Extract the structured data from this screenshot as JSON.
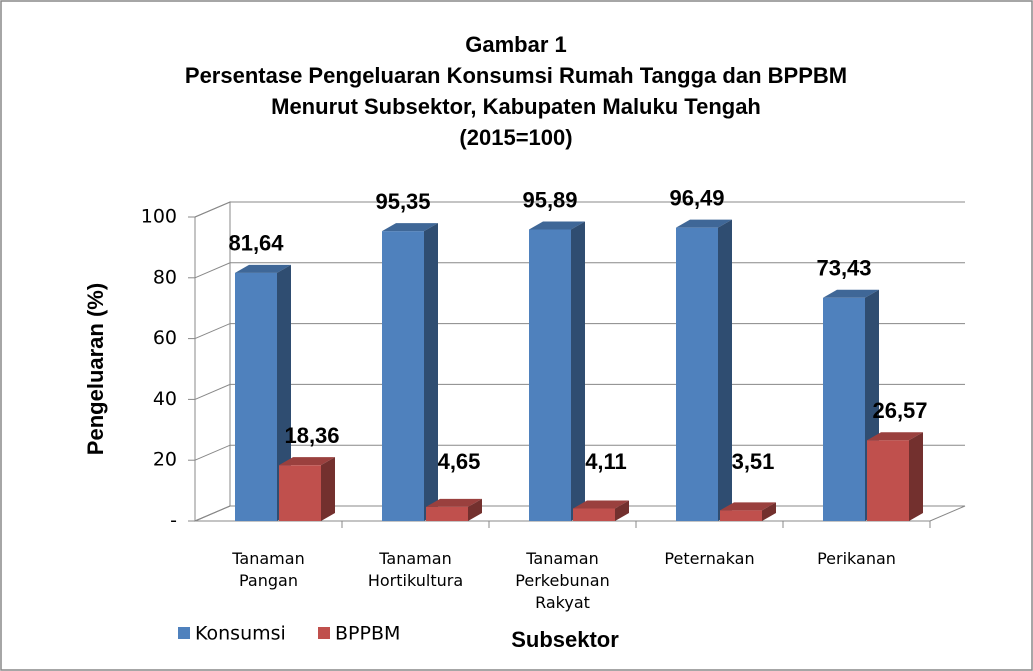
{
  "chart_data": {
    "type": "bar3d",
    "title": [
      "Gambar 1",
      "Persentase Pengeluaran Konsumsi Rumah Tangga dan BPPBM",
      "Menurut Subsektor, Kabupaten Maluku Tengah",
      "(2015=100)"
    ],
    "x_label": "Subsektor",
    "y_label": "Pengeluaran (%)",
    "categories": [
      "Tanaman Pangan",
      "Tanaman Hortikultura",
      "Tanaman Perkebunan Rakyat",
      "Peternakan",
      "Perikanan"
    ],
    "series": [
      {
        "name": "Konsumsi",
        "color": "#4f81bd",
        "values": [
          81.64,
          95.35,
          95.89,
          96.49,
          73.43
        ],
        "value_labels": [
          "81,64",
          "95,35",
          "95,89",
          "96,49",
          "73,43"
        ]
      },
      {
        "name": "BPPBM",
        "color": "#c0504d",
        "values": [
          18.36,
          4.65,
          4.11,
          3.51,
          26.57
        ],
        "value_labels": [
          "18,36",
          "4,65",
          "4,11",
          "3,51",
          "26,57"
        ]
      }
    ],
    "ylim": [
      0,
      100
    ],
    "yticks": [
      {
        "value": 0,
        "label": "-"
      },
      20,
      40,
      60,
      80,
      100
    ],
    "grid": true,
    "legend": "bottom-left"
  }
}
